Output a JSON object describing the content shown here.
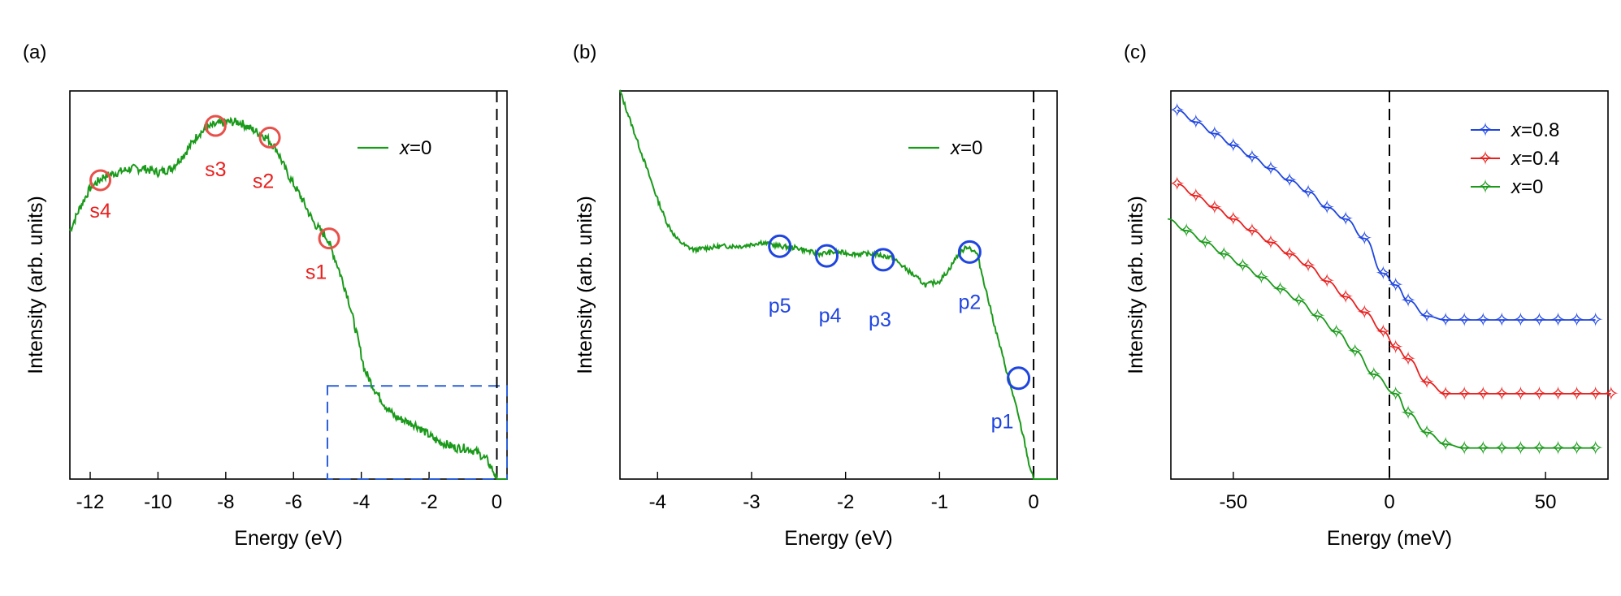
{
  "colors": {
    "green": "#1a9a1a",
    "red": "#e8211f",
    "blue": "#1f45e0",
    "circle_red": "#e8504a",
    "box_blue": "#2b5fd9"
  },
  "chart_data": [
    {
      "panel": "(a)",
      "type": "line",
      "xlabel": "Energy (eV)",
      "ylabel": "Intensity (arb. units)",
      "xlim": [
        -12.6,
        0.3
      ],
      "ylim": [
        0,
        1
      ],
      "xticks": [
        -12,
        -10,
        -8,
        -6,
        -4,
        -2,
        0
      ],
      "xtick_labels": [
        "-12",
        "-10",
        "-8",
        "-6",
        "-4",
        "-2",
        "0"
      ],
      "legend": "x=0",
      "legend_prefix": "x",
      "legend_suffix": "=0",
      "series": [
        {
          "name": "x=0",
          "x": [
            -12.6,
            -12.3,
            -12.0,
            -11.6,
            -11.2,
            -10.8,
            -10.4,
            -10.0,
            -9.6,
            -9.2,
            -8.8,
            -8.4,
            -8.0,
            -7.6,
            -7.2,
            -6.8,
            -6.5,
            -6.2,
            -5.8,
            -5.4,
            -5.0,
            -4.7,
            -4.4,
            -4.1,
            -3.9,
            -3.6,
            -3.3,
            -3.0,
            -2.7,
            -2.4,
            -2.1,
            -1.8,
            -1.5,
            -1.2,
            -0.9,
            -0.6,
            -0.3,
            -0.1,
            0.0,
            0.1,
            0.3
          ],
          "y": [
            0.64,
            0.7,
            0.75,
            0.78,
            0.79,
            0.8,
            0.8,
            0.79,
            0.8,
            0.84,
            0.89,
            0.91,
            0.92,
            0.92,
            0.9,
            0.88,
            0.85,
            0.79,
            0.73,
            0.66,
            0.62,
            0.55,
            0.47,
            0.36,
            0.28,
            0.23,
            0.19,
            0.16,
            0.15,
            0.14,
            0.12,
            0.1,
            0.09,
            0.08,
            0.08,
            0.07,
            0.05,
            0.02,
            0.0,
            0.0,
            0.0
          ]
        }
      ],
      "annotations": [
        {
          "label": "s4",
          "x": -11.7,
          "y": 0.77
        },
        {
          "label": "s3",
          "x": -8.3,
          "y": 0.91
        },
        {
          "label": "s2",
          "x": -6.7,
          "y": 0.88
        },
        {
          "label": "s1",
          "x": -4.95,
          "y": 0.62
        }
      ],
      "highlight_box": {
        "x": [
          -5.0,
          0.3
        ],
        "y": [
          0.0,
          0.24
        ]
      }
    },
    {
      "panel": "(b)",
      "type": "line",
      "xlabel": "Energy (eV)",
      "ylabel": "Intensity (arb. units)",
      "xlim": [
        -4.4,
        0.25
      ],
      "ylim": [
        0,
        1
      ],
      "xticks": [
        -4,
        -3,
        -2,
        -1,
        0
      ],
      "xtick_labels": [
        "-4",
        "-3",
        "-2",
        "-1",
        "0"
      ],
      "legend": "x=0",
      "legend_prefix": "x",
      "legend_suffix": "=0",
      "series": [
        {
          "name": "x=0",
          "x": [
            -4.4,
            -4.3,
            -4.2,
            -4.1,
            -4.0,
            -3.9,
            -3.8,
            -3.7,
            -3.6,
            -3.5,
            -3.3,
            -3.1,
            -2.9,
            -2.7,
            -2.5,
            -2.3,
            -2.1,
            -1.9,
            -1.7,
            -1.5,
            -1.3,
            -1.15,
            -1.0,
            -0.9,
            -0.8,
            -0.7,
            -0.6,
            -0.5,
            -0.4,
            -0.3,
            -0.2,
            -0.1,
            -0.05,
            0.0,
            0.1,
            0.25
          ],
          "y": [
            1.0,
            0.93,
            0.86,
            0.79,
            0.72,
            0.66,
            0.62,
            0.6,
            0.59,
            0.595,
            0.6,
            0.6,
            0.61,
            0.6,
            0.595,
            0.58,
            0.585,
            0.58,
            0.58,
            0.57,
            0.53,
            0.5,
            0.51,
            0.54,
            0.58,
            0.6,
            0.58,
            0.48,
            0.38,
            0.29,
            0.2,
            0.1,
            0.04,
            0.0,
            0.0,
            0.0
          ]
        }
      ],
      "annotations": [
        {
          "label": "p5",
          "x": -2.7,
          "y": 0.6
        },
        {
          "label": "p4",
          "x": -2.2,
          "y": 0.575
        },
        {
          "label": "p3",
          "x": -1.6,
          "y": 0.565
        },
        {
          "label": "p2",
          "x": -0.68,
          "y": 0.585
        },
        {
          "label": "p1",
          "x": -0.16,
          "y": 0.26
        }
      ]
    },
    {
      "panel": "(c)",
      "type": "line",
      "xlabel": "Energy (meV)",
      "ylabel": "Intensity (arb. units)",
      "xlim": [
        -70,
        70
      ],
      "ylim": [
        0,
        1
      ],
      "xticks": [
        -50,
        0,
        50
      ],
      "xtick_labels": [
        "-50",
        "0",
        "50"
      ],
      "series": [
        {
          "name": "x=0.8",
          "legend_prefix": "x",
          "legend_suffix": "=0.8",
          "color": "#1f45e0",
          "x": [
            -68,
            -62,
            -56,
            -50,
            -44,
            -38,
            -32,
            -26,
            -20,
            -14,
            -8,
            -2,
            2,
            6,
            12,
            18,
            24,
            30,
            36,
            42,
            48,
            54,
            60,
            66
          ],
          "y": [
            0.95,
            0.92,
            0.89,
            0.86,
            0.83,
            0.8,
            0.77,
            0.74,
            0.7,
            0.67,
            0.62,
            0.53,
            0.5,
            0.46,
            0.42,
            0.41,
            0.41,
            0.41,
            0.41,
            0.41,
            0.41,
            0.41,
            0.41,
            0.41
          ]
        },
        {
          "name": "x=0.4",
          "legend_prefix": "x",
          "legend_suffix": "=0.4",
          "color": "#e8211f",
          "x": [
            -68,
            -62,
            -56,
            -50,
            -44,
            -38,
            -32,
            -26,
            -20,
            -14,
            -8,
            -2,
            2,
            6,
            12,
            18,
            24,
            30,
            36,
            42,
            48,
            54,
            60,
            66,
            71
          ],
          "y": [
            0.76,
            0.73,
            0.7,
            0.67,
            0.64,
            0.61,
            0.58,
            0.55,
            0.51,
            0.47,
            0.43,
            0.38,
            0.34,
            0.31,
            0.25,
            0.22,
            0.22,
            0.22,
            0.22,
            0.22,
            0.22,
            0.22,
            0.22,
            0.22,
            0.22
          ]
        },
        {
          "name": "x=0",
          "legend_prefix": "x",
          "legend_suffix": "=0",
          "color": "#1a9a1a",
          "x": [
            -71,
            -65,
            -59,
            -53,
            -47,
            -41,
            -35,
            -29,
            -23,
            -17,
            -11,
            -5,
            2,
            6,
            12,
            18,
            24,
            30,
            36,
            42,
            48,
            54,
            60,
            66
          ],
          "y": [
            0.67,
            0.64,
            0.61,
            0.58,
            0.55,
            0.52,
            0.49,
            0.46,
            0.42,
            0.38,
            0.33,
            0.27,
            0.22,
            0.17,
            0.12,
            0.09,
            0.08,
            0.08,
            0.08,
            0.08,
            0.08,
            0.08,
            0.08,
            0.08
          ]
        }
      ]
    }
  ]
}
